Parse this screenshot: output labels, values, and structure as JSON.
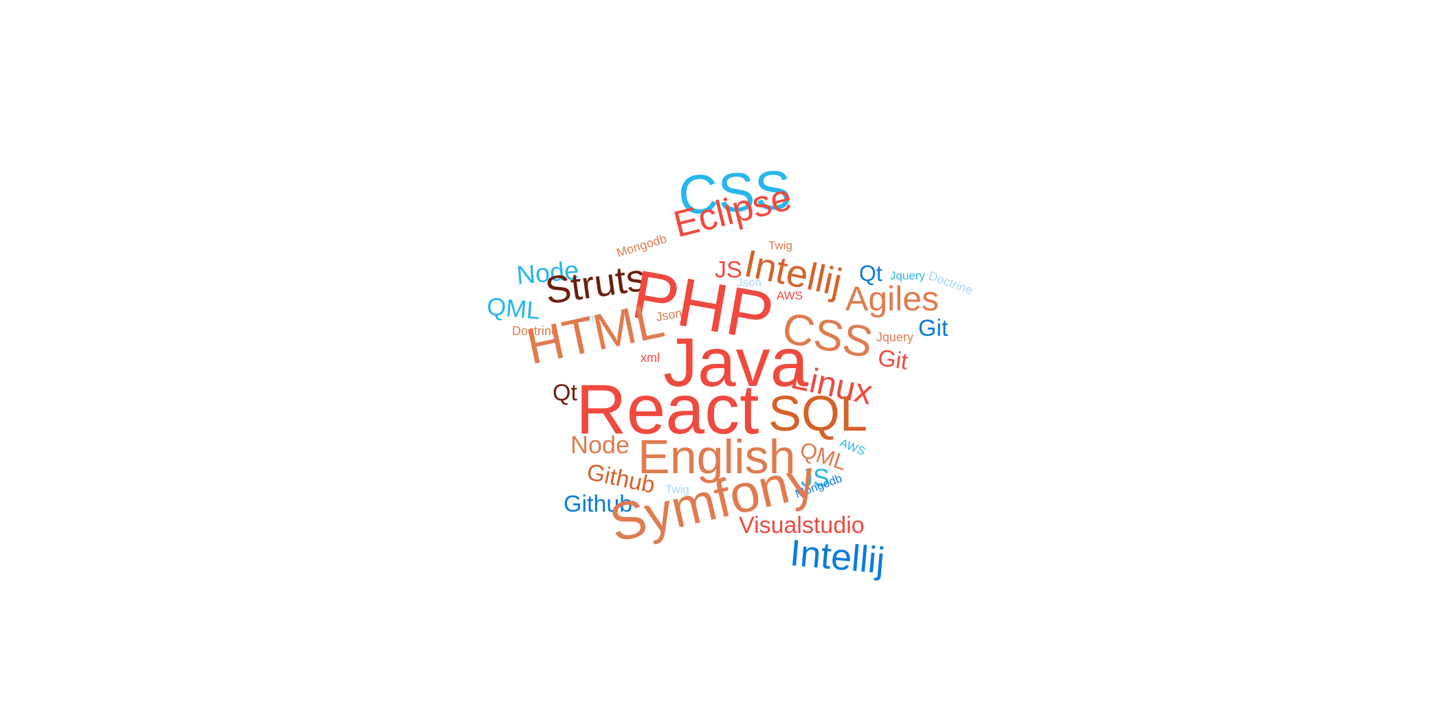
{
  "palette": {
    "red": "#F0493E",
    "orange": "#E07B4F",
    "burnt": "#D4622A",
    "brown": "#6B1E0E",
    "sky": "#27B6EE",
    "blue": "#0A7BDB",
    "pale": "#A6D8F2"
  },
  "words": [
    {
      "text": "CSS",
      "color": "sky"
    },
    {
      "text": "Eclipse",
      "color": "red"
    },
    {
      "text": "Twig",
      "color": "orange"
    },
    {
      "text": "Mongodb",
      "color": "orange"
    },
    {
      "text": "Intellij",
      "color": "burnt"
    },
    {
      "text": "JS",
      "color": "red"
    },
    {
      "text": "Json",
      "color": "pale"
    },
    {
      "text": "Node",
      "color": "sky"
    },
    {
      "text": "Qt",
      "color": "blue"
    },
    {
      "text": "Jquery",
      "color": "sky"
    },
    {
      "text": "Doctrine",
      "color": "pale"
    },
    {
      "text": "Struts",
      "color": "brown"
    },
    {
      "text": "PHP",
      "color": "red"
    },
    {
      "text": "AWS",
      "color": "red"
    },
    {
      "text": "Agiles",
      "color": "orange"
    },
    {
      "text": "QML",
      "color": "sky"
    },
    {
      "text": "xml",
      "color": "pale"
    },
    {
      "text": "Json",
      "color": "orange"
    },
    {
      "text": "CSS",
      "color": "orange"
    },
    {
      "text": "Git",
      "color": "blue"
    },
    {
      "text": "Doctrine",
      "color": "orange"
    },
    {
      "text": "Jquery",
      "color": "orange"
    },
    {
      "text": "HTML",
      "color": "orange"
    },
    {
      "text": "Java",
      "color": "red"
    },
    {
      "text": "xml",
      "color": "red"
    },
    {
      "text": "Git",
      "color": "red"
    },
    {
      "text": "Linux",
      "color": "red"
    },
    {
      "text": "Qt",
      "color": "brown"
    },
    {
      "text": "React",
      "color": "red"
    },
    {
      "text": "SQL",
      "color": "burnt"
    },
    {
      "text": "Node",
      "color": "orange"
    },
    {
      "text": "English",
      "color": "orange"
    },
    {
      "text": "QML",
      "color": "orange"
    },
    {
      "text": "AWS",
      "color": "sky"
    },
    {
      "text": "Github",
      "color": "burnt"
    },
    {
      "text": "JS",
      "color": "sky"
    },
    {
      "text": "Twig",
      "color": "pale"
    },
    {
      "text": "Mongodb",
      "color": "blue"
    },
    {
      "text": "Github",
      "color": "blue"
    },
    {
      "text": "Symfony",
      "color": "orange"
    },
    {
      "text": "Visualstudio",
      "color": "red"
    },
    {
      "text": "Intellij",
      "color": "blue"
    }
  ]
}
